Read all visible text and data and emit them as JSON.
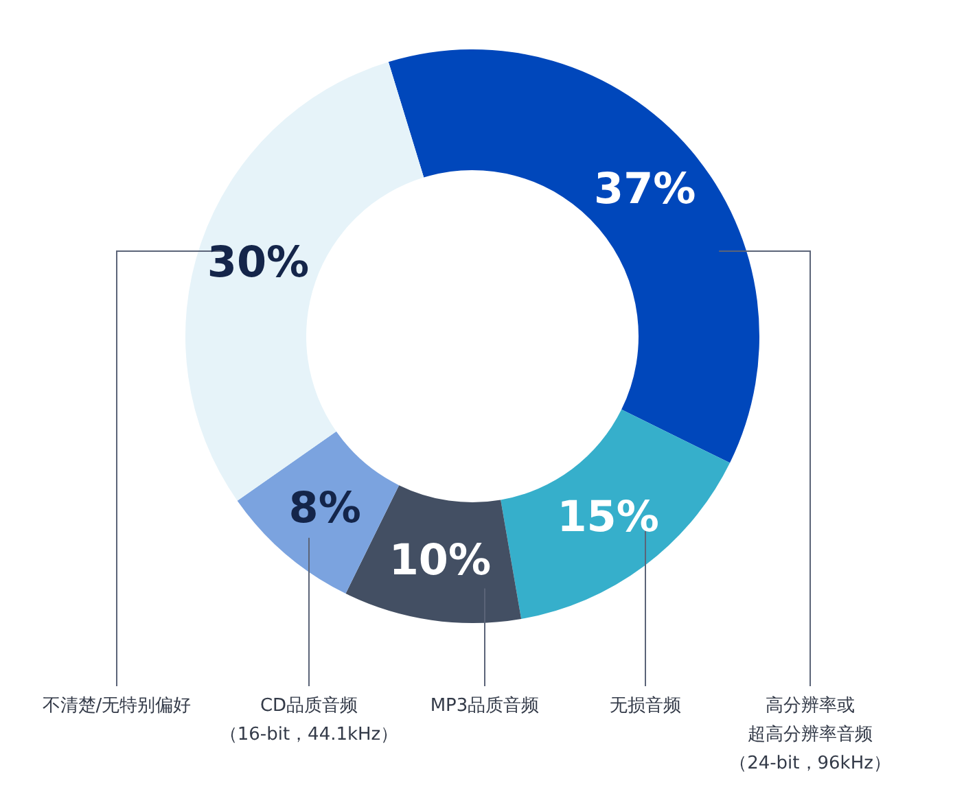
{
  "chart_data": {
    "type": "donut",
    "categories": [
      "高分辨率或超高分辨率音频（24-bit，96kHz）",
      "无损音频",
      "MP3品质音频",
      "CD品质音频（16-bit，44.1kHz）",
      "不清楚/无特别偏好"
    ],
    "values": [
      37,
      15,
      10,
      8,
      30
    ],
    "colors": [
      "#0047bb",
      "#36afcb",
      "#434f63",
      "#7ba3df",
      "#e6f3f9"
    ],
    "value_labels": [
      "37%",
      "15%",
      "10%",
      "8%",
      "30%"
    ]
  }
}
